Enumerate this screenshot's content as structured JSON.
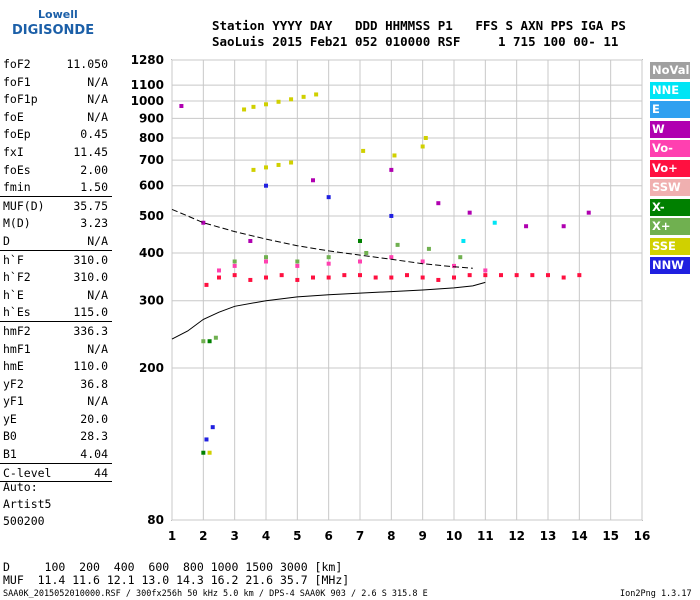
{
  "logo": {
    "line1": "Lowell",
    "line2": "DIGISONDE"
  },
  "header": {
    "row1": "Station YYYY DAY   DDD HHMMSS P1   FFS S AXN PPS IGA PS",
    "row2": "SaoLuis 2015 Feb21 052 010000 RSF     1 715 100 00- 11"
  },
  "params": [
    [
      {
        "k": "foF2",
        "v": "11.050"
      },
      {
        "k": "foF1",
        "v": "N/A"
      },
      {
        "k": "foF1p",
        "v": "N/A"
      },
      {
        "k": "foE",
        "v": "N/A"
      },
      {
        "k": "foEp",
        "v": "0.45"
      },
      {
        "k": "fxI",
        "v": "11.45"
      },
      {
        "k": "foEs",
        "v": "2.00"
      },
      {
        "k": "fmin",
        "v": "1.50"
      }
    ],
    [
      {
        "k": "MUF(D)",
        "v": "35.75"
      },
      {
        "k": "M(D)",
        "v": "3.23"
      },
      {
        "k": "D",
        "v": "N/A"
      }
    ],
    [
      {
        "k": "h`F",
        "v": "310.0"
      },
      {
        "k": "h`F2",
        "v": "310.0"
      },
      {
        "k": "h`E",
        "v": "N/A"
      },
      {
        "k": "h`Es",
        "v": "115.0"
      }
    ],
    [
      {
        "k": "hmF2",
        "v": "336.3"
      },
      {
        "k": "hmF1",
        "v": "N/A"
      },
      {
        "k": "hmE",
        "v": "110.0"
      },
      {
        "k": "yF2",
        "v": "36.8"
      },
      {
        "k": "yF1",
        "v": "N/A"
      },
      {
        "k": "yE",
        "v": "20.0"
      },
      {
        "k": "B0",
        "v": "28.3"
      },
      {
        "k": "B1",
        "v": "4.04"
      }
    ],
    [
      {
        "k": "C-level",
        "v": "44"
      }
    ]
  ],
  "auto": {
    "line1": "Auto:",
    "line2": "Artist5",
    "line3": "500200"
  },
  "legend": [
    {
      "label": "NoVal",
      "color": "#a0a0a0"
    },
    {
      "label": "NNE",
      "color": "#00e5f5"
    },
    {
      "label": "E",
      "color": "#2fa0f0"
    },
    {
      "label": "W",
      "color": "#b000b0"
    },
    {
      "label": "Vo-",
      "color": "#ff40b0"
    },
    {
      "label": "Vo+",
      "color": "#ff1040"
    },
    {
      "label": "SSW",
      "color": "#f0b0b0"
    },
    {
      "label": "X-",
      "color": "#008000"
    },
    {
      "label": "X+",
      "color": "#70b050"
    },
    {
      "label": "SSE",
      "color": "#d0d000"
    },
    {
      "label": "NNW",
      "color": "#2020e0"
    }
  ],
  "bottom": {
    "row1": "D     100  200  400  600  800 1000 1500 3000 [km]",
    "row2": "MUF  11.4 11.6 12.1 13.0 14.3 16.2 21.6 35.7 [MHz]"
  },
  "footer": {
    "left": "SAA0K_2015052010000.RSF / 300fx256h 50 kHz 5.0 km / DPS-4 SAA0K 903 / 2.6 S 315.8 E",
    "right": "Ion2Png 1.3.17"
  },
  "chart_data": {
    "type": "scatter",
    "title": "",
    "xlabel": "",
    "ylabel": "",
    "xlim": [
      1,
      16
    ],
    "ylim": [
      80,
      1280
    ],
    "yscale": "log",
    "grid": true,
    "x_ticks": [
      1,
      2,
      3,
      4,
      5,
      6,
      7,
      8,
      9,
      10,
      11,
      12,
      13,
      14,
      15,
      16
    ],
    "y_ticks": [
      80,
      200,
      300,
      400,
      500,
      600,
      700,
      800,
      900,
      1000,
      1100,
      1280
    ],
    "legend_placement": "right",
    "series": [
      {
        "name": "Vo+",
        "points": [
          [
            2.1,
            330
          ],
          [
            2.5,
            345
          ],
          [
            3,
            350
          ],
          [
            3.5,
            340
          ],
          [
            4,
            345
          ],
          [
            4.5,
            350
          ],
          [
            5,
            340
          ],
          [
            5.5,
            345
          ],
          [
            6,
            345
          ],
          [
            6.5,
            350
          ],
          [
            7,
            350
          ],
          [
            7.5,
            345
          ],
          [
            8,
            345
          ],
          [
            8.5,
            350
          ],
          [
            9,
            345
          ],
          [
            9.5,
            340
          ],
          [
            10,
            345
          ],
          [
            10.5,
            350
          ],
          [
            11,
            350
          ],
          [
            11.5,
            350
          ],
          [
            12,
            350
          ],
          [
            12.5,
            350
          ],
          [
            13,
            350
          ],
          [
            13.5,
            345
          ],
          [
            14,
            350
          ]
        ]
      },
      {
        "name": "Vo-",
        "points": [
          [
            2.5,
            360
          ],
          [
            3,
            370
          ],
          [
            4,
            380
          ],
          [
            5,
            370
          ],
          [
            6,
            375
          ],
          [
            7,
            380
          ],
          [
            8,
            390
          ],
          [
            9,
            380
          ],
          [
            10,
            370
          ],
          [
            11,
            360
          ]
        ]
      },
      {
        "name": "SSE",
        "points": [
          [
            2.2,
            120
          ],
          [
            3.3,
            950
          ],
          [
            3.6,
            965
          ],
          [
            4,
            980
          ],
          [
            4.4,
            995
          ],
          [
            4.8,
            1010
          ],
          [
            5.2,
            1025
          ],
          [
            5.6,
            1040
          ],
          [
            3.6,
            660
          ],
          [
            4,
            670
          ],
          [
            4.4,
            680
          ],
          [
            4.8,
            690
          ],
          [
            7.1,
            740
          ],
          [
            8.1,
            720
          ],
          [
            9,
            760
          ],
          [
            9.1,
            800
          ]
        ]
      },
      {
        "name": "X+",
        "points": [
          [
            2,
            235
          ],
          [
            2.4,
            240
          ],
          [
            3,
            380
          ],
          [
            4,
            390
          ],
          [
            5,
            380
          ],
          [
            6,
            390
          ],
          [
            7.2,
            400
          ],
          [
            8.2,
            420
          ],
          [
            9.2,
            410
          ],
          [
            10.2,
            390
          ]
        ]
      },
      {
        "name": "W",
        "points": [
          [
            1.3,
            970
          ],
          [
            2,
            480
          ],
          [
            3.5,
            430
          ],
          [
            5.5,
            620
          ],
          [
            8,
            660
          ],
          [
            9.5,
            540
          ],
          [
            10.5,
            510
          ],
          [
            12.3,
            470
          ],
          [
            13.5,
            470
          ],
          [
            14.3,
            510
          ]
        ]
      },
      {
        "name": "NNW",
        "points": [
          [
            2.1,
            130
          ],
          [
            2.3,
            140
          ],
          [
            4,
            600
          ],
          [
            6,
            560
          ],
          [
            8,
            500
          ]
        ]
      },
      {
        "name": "NNE",
        "points": [
          [
            10.3,
            430
          ],
          [
            11.3,
            480
          ]
        ]
      },
      {
        "name": "X-",
        "points": [
          [
            2,
            120
          ],
          [
            2.2,
            235
          ],
          [
            7,
            430
          ]
        ]
      }
    ],
    "traces": [
      {
        "name": "O-trace profile",
        "points": [
          [
            1,
            238
          ],
          [
            1.5,
            250
          ],
          [
            2,
            268
          ],
          [
            2.5,
            280
          ],
          [
            3,
            290
          ],
          [
            4,
            300
          ],
          [
            5,
            307
          ],
          [
            6,
            311
          ],
          [
            7,
            314
          ],
          [
            8,
            317
          ],
          [
            9,
            320
          ],
          [
            10,
            324
          ],
          [
            10.6,
            328
          ],
          [
            11,
            335
          ]
        ]
      },
      {
        "name": "MUF curve",
        "points": [
          [
            1,
            520
          ],
          [
            1.5,
            500
          ],
          [
            2,
            480
          ],
          [
            3,
            455
          ],
          [
            4,
            435
          ],
          [
            5,
            418
          ],
          [
            6,
            405
          ],
          [
            7,
            395
          ],
          [
            8,
            385
          ],
          [
            9,
            375
          ],
          [
            10,
            368
          ],
          [
            10.6,
            365
          ]
        ]
      }
    ]
  }
}
